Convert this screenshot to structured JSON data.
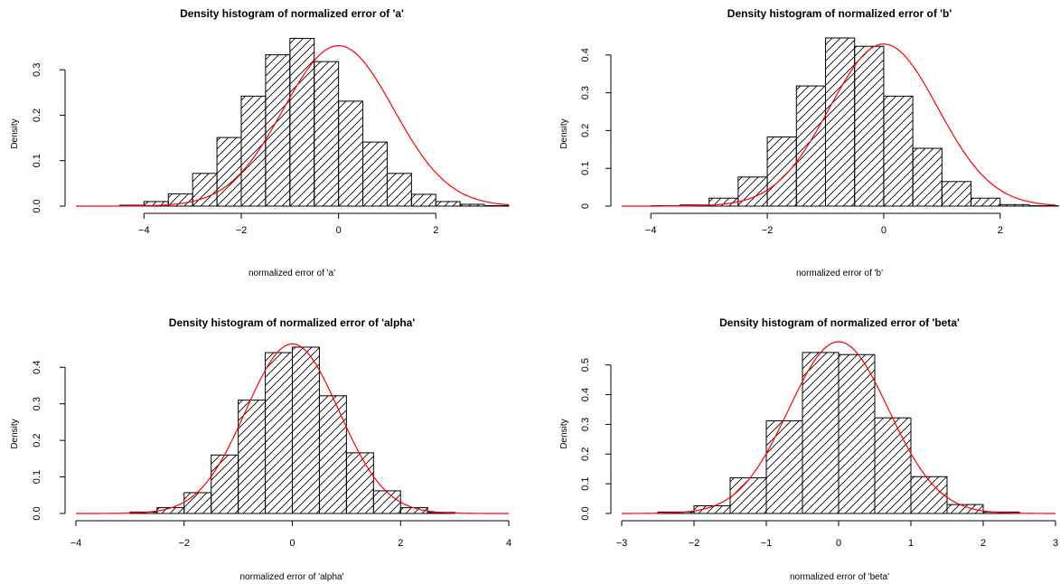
{
  "chart_data": [
    {
      "type": "bar",
      "title": "Density histogram of normalized error of 'a'",
      "xlabel": "normalized error of 'a'",
      "ylabel": "Density",
      "xlim": [
        -5.4,
        3.5
      ],
      "ylim": [
        0,
        0.37
      ],
      "x_ticks": [
        -4,
        -2,
        0,
        2
      ],
      "x_tick_labels": [
        "−4",
        "−2",
        "0",
        "2"
      ],
      "y_ticks": [
        0,
        0.1,
        0.2,
        0.3
      ],
      "y_tick_labels": [
        "0.0",
        "0.1",
        "0.2",
        "0.3"
      ],
      "bin_edges": [
        -5,
        -4.5,
        -4,
        -3.5,
        -3,
        -2.5,
        -2,
        -1.5,
        -1,
        -0.5,
        0,
        0.5,
        1,
        1.5,
        2,
        2.5,
        3,
        3.5
      ],
      "values": [
        0,
        0.002,
        0.01,
        0.027,
        0.072,
        0.151,
        0.242,
        0.333,
        0.369,
        0.318,
        0.231,
        0.141,
        0.072,
        0.026,
        0.01,
        0.004,
        0.001
      ],
      "curve": {
        "type": "normal_density",
        "mean": 0,
        "sd": 1.13,
        "from": -5.4,
        "to": 3.5,
        "color": "#ff0000"
      },
      "bar_fill": "hatched",
      "grid": false
    },
    {
      "type": "bar",
      "title": "Density histogram of normalized error of 'b'",
      "xlabel": "normalized error of 'b'",
      "ylabel": "Density",
      "xlim": [
        -4.5,
        2.95
      ],
      "ylim": [
        0,
        0.445
      ],
      "x_ticks": [
        -4,
        -2,
        0,
        2
      ],
      "x_tick_labels": [
        "−4",
        "−2",
        "0",
        "2"
      ],
      "y_ticks": [
        0,
        0.1,
        0.2,
        0.3,
        0.4
      ],
      "y_tick_labels": [
        "0",
        "0.1",
        "0.2",
        "0.3",
        "0.4"
      ],
      "bin_edges": [
        -4,
        -3.5,
        -3,
        -2.5,
        -2,
        -1.5,
        -1,
        -0.5,
        0,
        0.5,
        1,
        1.5,
        2,
        2.5,
        3
      ],
      "values": [
        0.001,
        0.003,
        0.021,
        0.077,
        0.183,
        0.318,
        0.445,
        0.423,
        0.291,
        0.153,
        0.065,
        0.021,
        0.004,
        0.001
      ],
      "curve": {
        "type": "normal_density",
        "mean": 0,
        "sd": 0.93,
        "from": -4.5,
        "to": 2.95,
        "color": "#ff0000"
      },
      "bar_fill": "hatched",
      "grid": false
    },
    {
      "type": "bar",
      "title": "Density histogram of normalized error of 'alpha'",
      "xlabel": "normalized error of 'alpha'",
      "ylabel": "Density",
      "xlim": [
        -4,
        4
      ],
      "ylim": [
        0,
        0.455
      ],
      "x_ticks": [
        -4,
        -2,
        0,
        2,
        4
      ],
      "x_tick_labels": [
        "−4",
        "−2",
        "0",
        "2",
        "4"
      ],
      "y_ticks": [
        0,
        0.1,
        0.2,
        0.3,
        0.4
      ],
      "y_tick_labels": [
        "0.0",
        "0.1",
        "0.2",
        "0.3",
        "0.4"
      ],
      "bin_edges": [
        -3,
        -2.5,
        -2,
        -1.5,
        -1,
        -0.5,
        0,
        0.5,
        1,
        1.5,
        2,
        2.5,
        3
      ],
      "values": [
        0.004,
        0.016,
        0.057,
        0.16,
        0.31,
        0.44,
        0.455,
        0.322,
        0.166,
        0.062,
        0.016,
        0.003
      ],
      "curve": {
        "type": "normal_density",
        "mean": 0,
        "sd": 0.86,
        "from": -4,
        "to": 4,
        "color": "#ff0000"
      },
      "bar_fill": "hatched",
      "grid": false
    },
    {
      "type": "bar",
      "title": "Density histogram of normalized error of 'beta'",
      "xlabel": "normalized error of 'beta'",
      "ylabel": "Density",
      "xlim": [
        -3,
        3
      ],
      "ylim": [
        0,
        0.56
      ],
      "x_ticks": [
        -3,
        -2,
        -1,
        0,
        1,
        2,
        3
      ],
      "x_tick_labels": [
        "−3",
        "−2",
        "−1",
        "0",
        "1",
        "2",
        "3"
      ],
      "y_ticks": [
        0,
        0.1,
        0.2,
        0.3,
        0.4,
        0.5
      ],
      "y_tick_labels": [
        "0.0",
        "0.1",
        "0.2",
        "0.3",
        "0.4",
        "0.5"
      ],
      "bin_edges": [
        -2.5,
        -2,
        -1.5,
        -1,
        -0.5,
        0,
        0.5,
        1,
        1.5,
        2,
        2.5
      ],
      "values": [
        0.005,
        0.026,
        0.12,
        0.312,
        0.542,
        0.535,
        0.322,
        0.124,
        0.03,
        0.005
      ],
      "curve": {
        "type": "normal_density",
        "mean": 0,
        "sd": 0.69,
        "from": -3,
        "to": 3,
        "color": "#ff0000"
      },
      "bar_fill": "hatched",
      "grid": false
    }
  ]
}
